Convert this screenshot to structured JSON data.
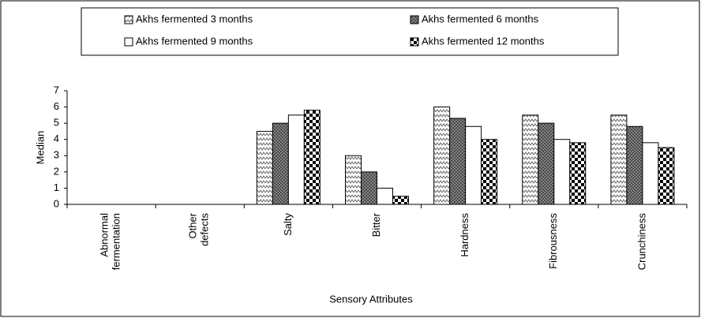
{
  "chart_data": {
    "type": "bar",
    "categories": [
      "Abnormal fermentation",
      "Other defects",
      "Salty",
      "Bitter",
      "Hardness",
      "Fibrousness",
      "Crunchiness"
    ],
    "series": [
      {
        "name": "Akhs fermented 3 months",
        "color": "#e8e8e8",
        "values": [
          0,
          0,
          4.5,
          3,
          6,
          5.5,
          5.5
        ]
      },
      {
        "name": "Akhs fermented 6 months",
        "color": "#808080",
        "values": [
          0,
          0,
          5,
          2,
          5.3,
          5,
          4.8
        ]
      },
      {
        "name": "Akhs fermented 9 months",
        "color": "#ffffff",
        "values": [
          0,
          0,
          5.5,
          1,
          4.8,
          4,
          3.8
        ]
      },
      {
        "name": "Akhs fermented 12 months",
        "color": "#000000",
        "values": [
          0,
          0,
          5.8,
          0.5,
          4,
          3.8,
          3.5
        ]
      }
    ],
    "ylim": [
      0,
      7
    ],
    "yticks": [
      0,
      1,
      2,
      3,
      4,
      5,
      6,
      7
    ],
    "y_label": "Median",
    "x_label": "Sensory Attributes"
  }
}
